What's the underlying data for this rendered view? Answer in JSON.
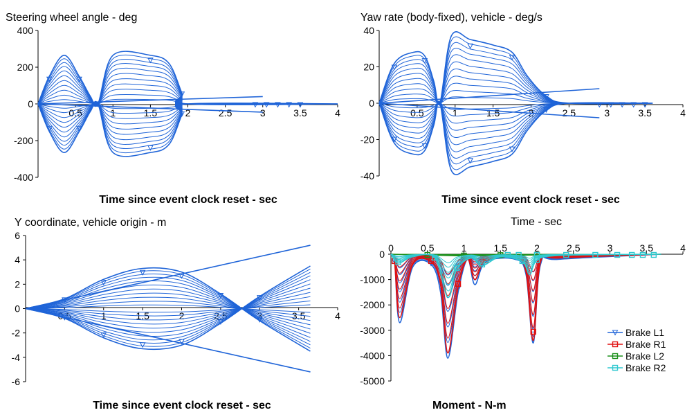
{
  "chart_data": [
    {
      "type": "line",
      "title": "Steering wheel angle - deg",
      "xlabel": "Time since event clock reset - sec",
      "ylabel": "",
      "xlim": [
        0,
        4
      ],
      "ylim": [
        -400,
        400
      ],
      "x_ticks": [
        "0.5",
        "1",
        "1.5",
        "2",
        "2.5",
        "3",
        "3.5",
        "4"
      ],
      "y_ticks": [
        "400",
        "200",
        "0",
        "-200",
        "-400"
      ],
      "colors": {
        "series": "#1f64d8"
      },
      "grid": false,
      "series": [
        {
          "x": [
            0,
            0.15,
            0.35,
            0.55,
            0.7,
            0.8,
            1.0,
            1.5,
            1.75,
            1.92,
            2.0,
            4.0
          ],
          "y": [
            0,
            150,
            265,
            150,
            40,
            0,
            265,
            265,
            220,
            60,
            0,
            0
          ]
        },
        {
          "x": [
            0,
            0.15,
            0.35,
            0.55,
            0.7,
            0.8,
            1.0,
            1.5,
            1.75,
            1.92,
            2.0,
            4.0
          ],
          "y": [
            0,
            -150,
            -265,
            -150,
            -40,
            0,
            -265,
            -265,
            -220,
            -60,
            0,
            0
          ]
        },
        {
          "x": [
            0,
            3.0
          ],
          "y": [
            0,
            40
          ]
        },
        {
          "x": [
            0,
            3.0
          ],
          "y": [
            0,
            -45
          ]
        }
      ]
    },
    {
      "type": "line",
      "title": "Yaw rate (body-fixed), vehicle - deg/s",
      "xlabel": "Time since event clock reset - sec",
      "ylabel": "",
      "xlim": [
        0,
        4
      ],
      "ylim": [
        -40,
        40
      ],
      "x_ticks": [
        "0.5",
        "1",
        "1.5",
        "2",
        "2.5",
        "3",
        "3.5",
        "4"
      ],
      "y_ticks": [
        "40",
        "20",
        "0",
        "-20",
        "-40"
      ],
      "colors": {
        "series": "#1f64d8"
      },
      "grid": false,
      "series": [
        {
          "x": [
            0,
            0.2,
            0.45,
            0.6,
            0.72,
            0.8,
            0.95,
            1.2,
            1.5,
            1.75,
            1.95,
            2.2,
            2.5,
            3.6
          ],
          "y": [
            0,
            22,
            28,
            26,
            12,
            0,
            37,
            35,
            32,
            28,
            15,
            4,
            0,
            0
          ]
        },
        {
          "x": [
            0,
            0.2,
            0.45,
            0.6,
            0.72,
            0.8,
            0.95,
            1.2,
            1.5,
            1.75,
            1.95,
            2.2,
            2.5,
            3.6
          ],
          "y": [
            0,
            -22,
            -28,
            -26,
            -12,
            0,
            -37,
            -35,
            -32,
            -28,
            -15,
            -4,
            0,
            0
          ]
        },
        {
          "x": [
            0,
            2.9
          ],
          "y": [
            0,
            8
          ]
        },
        {
          "x": [
            0,
            2.9
          ],
          "y": [
            0,
            -8
          ]
        }
      ]
    },
    {
      "type": "line",
      "title": "Y coordinate, vehicle origin - m",
      "xlabel": "Time since event clock reset - sec",
      "ylabel": "",
      "xlim": [
        0,
        4
      ],
      "ylim": [
        -6,
        6
      ],
      "x_ticks": [
        "0.5",
        "1",
        "1.5",
        "2",
        "2.5",
        "3",
        "3.5",
        "4"
      ],
      "y_ticks": [
        "6",
        "4",
        "2",
        "0",
        "-2",
        "-4",
        "-6"
      ],
      "colors": {
        "series": "#1f64d8"
      },
      "grid": false,
      "series": [
        {
          "x": [
            0,
            0.5,
            1.0,
            1.5,
            2.0,
            2.5,
            3.0,
            3.65
          ],
          "y": [
            0,
            0.8,
            2.4,
            3.3,
            3.0,
            1.2,
            -1.0,
            -3.5
          ]
        },
        {
          "x": [
            0,
            0.5,
            1.0,
            1.5,
            2.0,
            2.5,
            3.0,
            3.65
          ],
          "y": [
            0,
            -0.8,
            -2.4,
            -3.3,
            -3.0,
            -1.2,
            1.0,
            3.5
          ]
        },
        {
          "x": [
            0,
            3.65
          ],
          "y": [
            0,
            5.2
          ]
        },
        {
          "x": [
            0,
            3.65
          ],
          "y": [
            0,
            -5.2
          ]
        }
      ]
    },
    {
      "type": "line",
      "title": "Time - sec",
      "xlabel": "Moment - N-m",
      "ylabel": "",
      "xlim": [
        0,
        4
      ],
      "ylim": [
        -5000,
        0
      ],
      "x_ticks": [
        "0",
        "0.5",
        "1",
        "1.5",
        "2",
        "2.5",
        "3",
        "3.5",
        "4"
      ],
      "y_ticks": [
        "0",
        "-1000",
        "-2000",
        "-3000",
        "-4000",
        "-5000"
      ],
      "colors": {
        "Brake L1": "#1f64d8",
        "Brake R1": "#e01010",
        "Brake L2": "#1a8f1a",
        "Brake R2": "#30c8d0"
      },
      "legend_position": "bottom-right",
      "grid": false,
      "series": [
        {
          "name": "Brake L1",
          "x": [
            0,
            0.05,
            0.12,
            0.3,
            0.55,
            0.68,
            0.78,
            0.92,
            1.05,
            1.15,
            1.3,
            1.7,
            1.85,
            1.95,
            2.05,
            2.3,
            3.7
          ],
          "y": [
            0,
            -300,
            -2700,
            -500,
            -400,
            -1500,
            -4100,
            -1500,
            -200,
            -1200,
            -300,
            -200,
            -800,
            -3500,
            -400,
            -200,
            0
          ]
        },
        {
          "name": "Brake R1",
          "x": [
            0,
            0.05,
            0.12,
            0.3,
            0.55,
            0.68,
            0.78,
            0.92,
            1.05,
            1.15,
            1.3,
            1.7,
            1.85,
            1.95,
            2.05,
            2.3,
            3.7
          ],
          "y": [
            0,
            -300,
            -2500,
            -400,
            -300,
            -1200,
            -3900,
            -1300,
            -200,
            -1000,
            -250,
            -150,
            -700,
            -3400,
            -300,
            -150,
            0
          ]
        },
        {
          "name": "Brake L2",
          "x": [
            0,
            0.5,
            1.0,
            1.5,
            2.0,
            3.7
          ],
          "y": [
            0,
            -30,
            -60,
            -40,
            -30,
            0
          ]
        },
        {
          "name": "Brake R2",
          "x": [
            0,
            0.1,
            0.3,
            0.6,
            0.78,
            0.9,
            1.1,
            1.25,
            1.5,
            1.8,
            1.9,
            2.0,
            2.3,
            3.7
          ],
          "y": [
            0,
            -350,
            -100,
            -150,
            -1700,
            -600,
            -150,
            -450,
            -100,
            -300,
            -800,
            -250,
            -50,
            0
          ]
        }
      ]
    }
  ]
}
